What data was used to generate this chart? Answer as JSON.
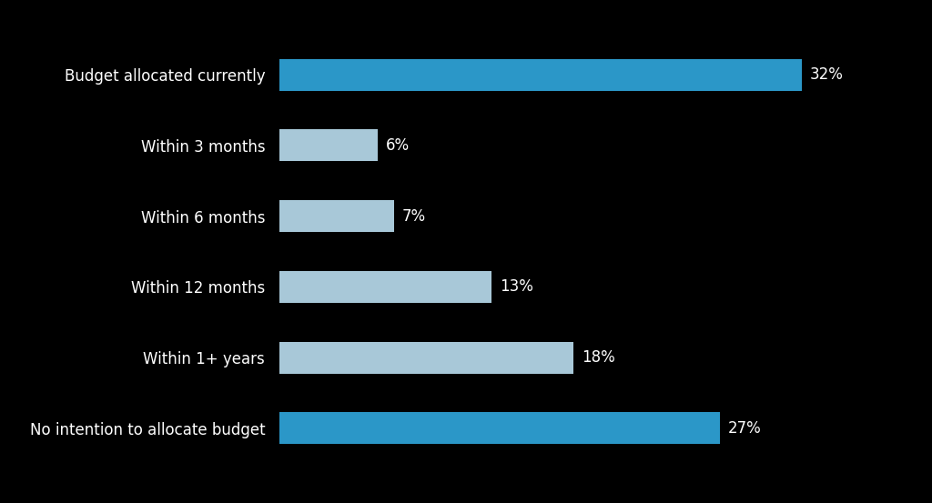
{
  "categories": [
    "Budget allocated currently",
    "Within 3 months",
    "Within 6 months",
    "Within 12 months",
    "Within 1+ years",
    "No intention to allocate budget"
  ],
  "values": [
    32,
    6,
    7,
    13,
    18,
    27
  ],
  "bar_colors": [
    "#2B97C8",
    "#A8C8D8",
    "#A8C8D8",
    "#A8C8D8",
    "#A8C8D8",
    "#2B97C8"
  ],
  "labels": [
    "32%",
    "6%",
    "7%",
    "13%",
    "18%",
    "27%"
  ],
  "background_color": "#000000",
  "text_color": "#ffffff",
  "label_fontsize": 12,
  "value_fontsize": 12,
  "xlim": [
    0,
    36
  ],
  "bar_height": 0.45,
  "figure_width": 10.24,
  "figure_height": 5.53
}
